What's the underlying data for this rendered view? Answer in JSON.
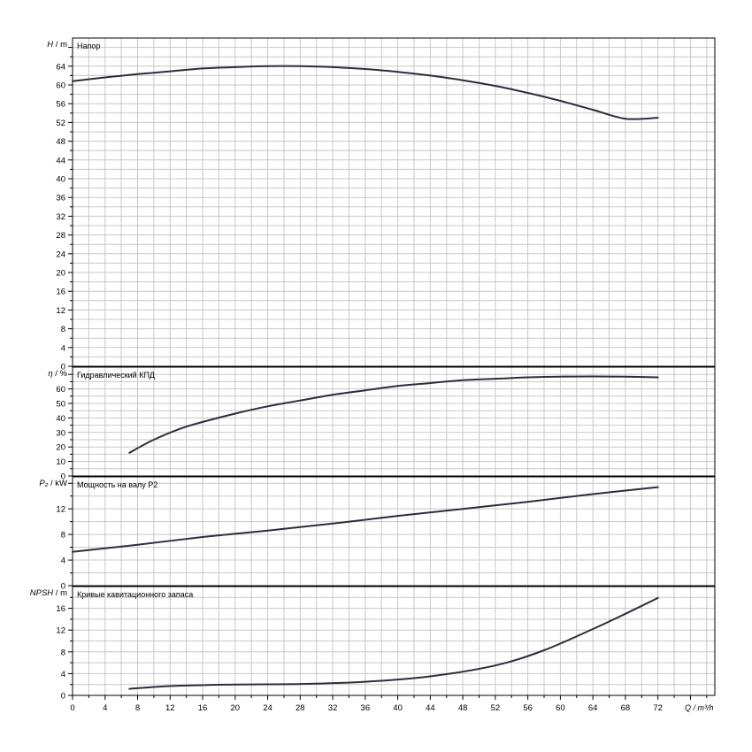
{
  "chart_data": [
    {
      "type": "line",
      "title": "Напор",
      "ylabel_var": "H",
      "ylabel_unit": "m",
      "ylim": [
        0,
        70
      ],
      "yticks": [
        0,
        4,
        8,
        12,
        16,
        20,
        24,
        28,
        32,
        36,
        40,
        44,
        48,
        52,
        56,
        60,
        64
      ],
      "series": [
        {
          "x": [
            0,
            4,
            8,
            12,
            16,
            20,
            24,
            28,
            32,
            36,
            40,
            44,
            48,
            52,
            56,
            60,
            64,
            68,
            72
          ],
          "y": [
            60.8,
            61.6,
            62.3,
            62.9,
            63.5,
            63.8,
            64.0,
            64.0,
            63.8,
            63.4,
            62.8,
            62.0,
            61.0,
            59.8,
            58.3,
            56.6,
            54.7,
            52.8,
            53.0
          ]
        }
      ],
      "color": "#2a2f3a"
    },
    {
      "type": "line",
      "title": "Гидравлический КПД",
      "ylabel_var": "η",
      "ylabel_unit": "%",
      "ylim": [
        0,
        75
      ],
      "yticks": [
        0,
        10,
        20,
        30,
        40,
        50,
        60
      ],
      "series": [
        {
          "x": [
            7,
            10,
            14,
            20,
            24,
            28,
            32,
            36,
            40,
            44,
            48,
            52,
            56,
            60,
            64,
            68,
            72
          ],
          "y": [
            16,
            25,
            34,
            43,
            48,
            52,
            56,
            59,
            62,
            64,
            66,
            67,
            68,
            68.5,
            68.6,
            68.4,
            68
          ]
        }
      ],
      "color": "#2a2f3a"
    },
    {
      "type": "line",
      "title": "Мощность на валу P2",
      "ylabel_var": "P₂",
      "ylabel_unit": "kW",
      "ylim": [
        0,
        17
      ],
      "yticks": [
        0,
        4,
        8,
        12
      ],
      "series": [
        {
          "x": [
            0,
            8,
            16,
            24,
            32,
            40,
            48,
            56,
            64,
            72
          ],
          "y": [
            5.3,
            6.4,
            7.6,
            8.6,
            9.7,
            10.9,
            12.0,
            13.1,
            14.3,
            15.4
          ]
        }
      ],
      "color": "#2a2f3a"
    },
    {
      "type": "line",
      "title": "Кривые кавитационного запаса",
      "ylabel_var": "NPSH",
      "ylabel_unit": "m",
      "ylim": [
        0,
        20
      ],
      "yticks": [
        0,
        4,
        8,
        12,
        16
      ],
      "series": [
        {
          "x": [
            7,
            12,
            20,
            28,
            36,
            44,
            52,
            58,
            64,
            68,
            72
          ],
          "y": [
            1.2,
            1.7,
            2.0,
            2.1,
            2.5,
            3.5,
            5.5,
            8.3,
            12.2,
            15.0,
            17.9
          ]
        }
      ],
      "color": "#2a2f3a"
    }
  ],
  "x_axis": {
    "label": "Q / m³/h",
    "ticks": [
      0,
      4,
      8,
      12,
      16,
      20,
      24,
      28,
      32,
      36,
      40,
      44,
      48,
      52,
      56,
      60,
      64,
      68,
      72
    ],
    "xlim": [
      0,
      79
    ]
  },
  "grid": true,
  "frame_color": "#000000",
  "grid_color": "#c8c8c8"
}
